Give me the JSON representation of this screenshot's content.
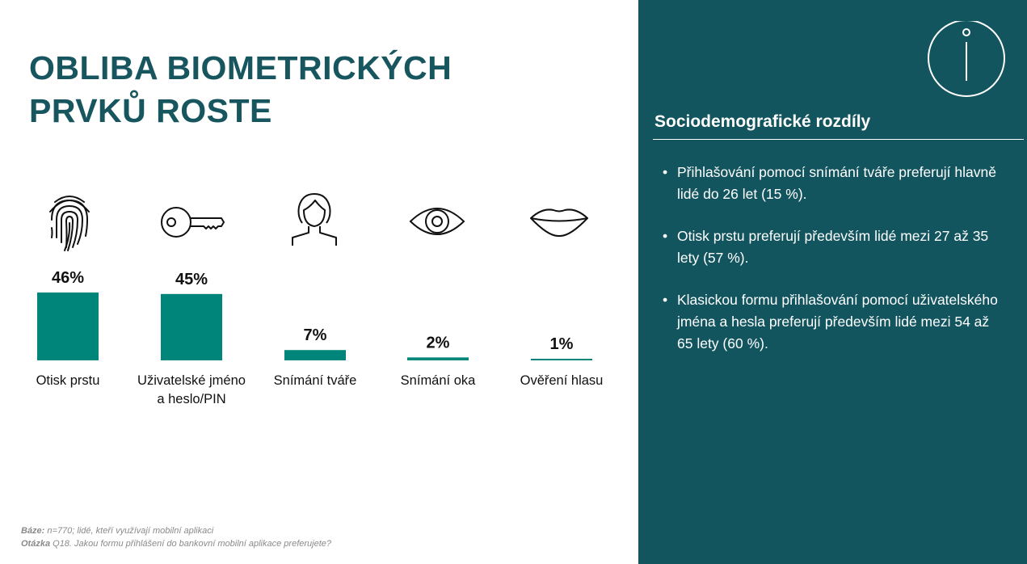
{
  "title": {
    "line1": "OBLIBA BIOMETRICKÝCH",
    "line2": "PRVKŮ ROSTE"
  },
  "chart_data": {
    "type": "bar",
    "categories": [
      [
        "Otisk prstu"
      ],
      [
        "Uživatelské jméno",
        "a heslo/PIN"
      ],
      [
        "Snímání tváře"
      ],
      [
        "Snímání oka"
      ],
      [
        "Ověření hlasu"
      ]
    ],
    "values": [
      46,
      45,
      7,
      2,
      1
    ],
    "data_labels": [
      "46%",
      "45%",
      "7%",
      "2%",
      "1%"
    ],
    "icons": [
      "fingerprint-icon",
      "key-icon",
      "face-icon",
      "eye-icon",
      "lips-icon"
    ],
    "ylim": [
      0,
      46
    ],
    "color": "#00857a",
    "grid": false
  },
  "footnotes": {
    "base_label": "Báze:",
    "base_text": " n=770; lidé, kteří využívají mobilní aplikaci",
    "question_label": "Otázka",
    "question_text": " Q18. Jakou formu přihlášení do bankovní mobilní aplikace preferujete?"
  },
  "panel": {
    "icon": "info-icon",
    "title": "Sociodemografické rozdíly",
    "bullets": [
      "Přihlašování pomocí snímání tváře preferují hlavně lidé do 26 let (15 %).",
      "Otisk prstu preferují především lidé mezi 27 až 35 lety (57 %).",
      "Klasickou formu přihlašování pomocí uživatelského jména a hesla preferují především lidé mezi 54 až 65 lety (60 %)."
    ],
    "background": "#13555f"
  }
}
